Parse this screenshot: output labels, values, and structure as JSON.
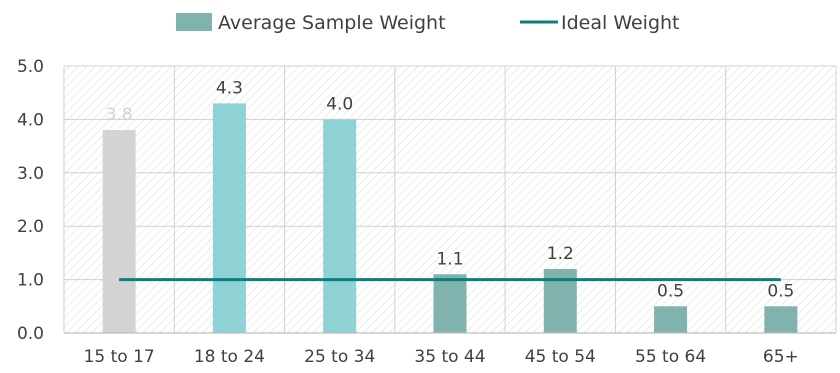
{
  "chart_data": {
    "type": "bar",
    "title": "",
    "xlabel": "",
    "ylabel": "",
    "categories": [
      "15 to 17",
      "18 to 24",
      "25 to 34",
      "35 to 44",
      "45 to 54",
      "55 to 64",
      "65+"
    ],
    "ylim": [
      0,
      5
    ],
    "y_ticks": [
      "0.0",
      "1.0",
      "2.0",
      "3.0",
      "4.0",
      "5.0"
    ],
    "grid": true,
    "legend_position": "top-center",
    "series": [
      {
        "name": "Average Sample Weight",
        "type": "bar",
        "values": [
          3.8,
          4.3,
          4.0,
          1.1,
          1.2,
          0.5,
          0.5
        ],
        "labels": [
          "3.8",
          "4.3",
          "4.0",
          "1.1",
          "1.2",
          "0.5",
          "0.5"
        ],
        "colors": [
          "#d3d3d3",
          "#8ed2d6",
          "#8ed2d6",
          "#80b3ae",
          "#80b3ae",
          "#80b3ae",
          "#80b3ae"
        ],
        "legend_color": "#80b3ae"
      },
      {
        "name": "Ideal Weight",
        "type": "line",
        "values": [
          1,
          1,
          1,
          1,
          1,
          1,
          1
        ],
        "color": "#0b7f7b"
      }
    ],
    "label_colors": [
      "#d3d3d3",
      "#404040",
      "#404040",
      "#404040",
      "#404040",
      "#404040",
      "#404040"
    ]
  }
}
